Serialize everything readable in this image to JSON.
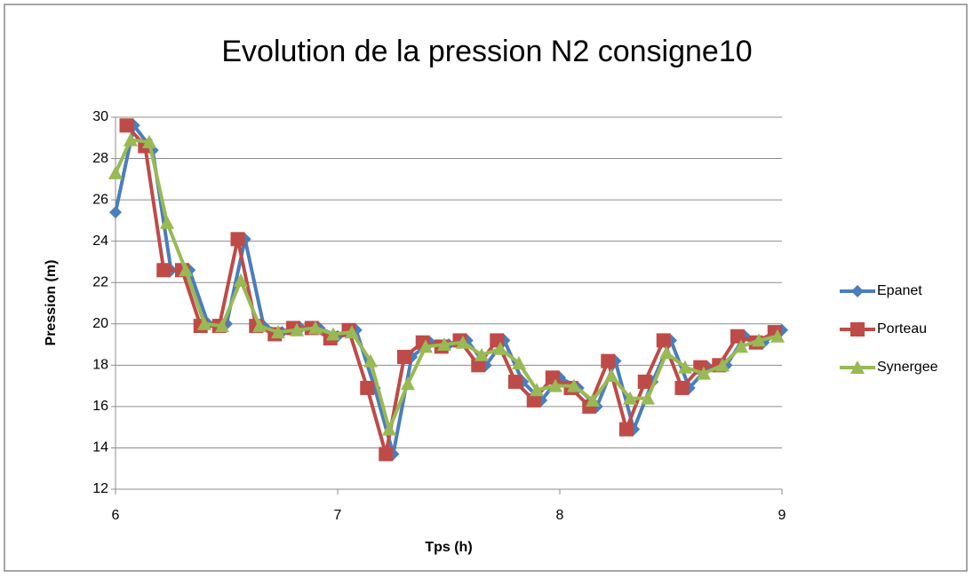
{
  "chart_data": {
    "type": "line",
    "title": "Evolution de la pression N2 consigne10",
    "xlabel": "Tps (h)",
    "ylabel": "Pression (m)",
    "xlim": [
      6,
      9
    ],
    "xticks": [
      6,
      7,
      8,
      9
    ],
    "ylim": [
      12,
      30
    ],
    "yticks": [
      12,
      14,
      16,
      18,
      20,
      22,
      24,
      26,
      28,
      30
    ],
    "grid": true,
    "legend": "right",
    "series": [
      {
        "name": "Epanet",
        "color": "#4a7ebb",
        "marker": "diamond",
        "x": [
          6,
          6.083,
          6.167,
          6.25,
          6.333,
          6.417,
          6.5,
          6.583,
          6.667,
          6.75,
          6.833,
          6.917,
          7,
          7.083,
          7.167,
          7.25,
          7.333,
          7.417,
          7.5,
          7.583,
          7.667,
          7.75,
          7.833,
          7.917,
          8,
          8.083,
          8.167,
          8.25,
          8.333,
          8.417,
          8.5,
          8.583,
          8.667,
          8.75,
          8.833,
          8.917,
          9
        ],
        "values": [
          25.4,
          29.6,
          28.4,
          22.6,
          22.6,
          20.0,
          20.0,
          24.1,
          19.9,
          19.6,
          19.8,
          19.8,
          19.4,
          19.7,
          16.9,
          13.7,
          18.4,
          19.1,
          19.0,
          19.2,
          18.0,
          19.2,
          17.2,
          16.3,
          17.4,
          16.9,
          16.0,
          18.2,
          14.9,
          17.2,
          19.2,
          16.9,
          17.9,
          18.0,
          19.4,
          19.1,
          19.7
        ]
      },
      {
        "name": "Porteau",
        "color": "#be4b48",
        "marker": "square",
        "x": [
          6.05,
          6.133,
          6.217,
          6.3,
          6.383,
          6.467,
          6.55,
          6.633,
          6.717,
          6.8,
          6.883,
          6.967,
          7.05,
          7.133,
          7.217,
          7.3,
          7.383,
          7.467,
          7.55,
          7.633,
          7.717,
          7.8,
          7.883,
          7.967,
          8.05,
          8.133,
          8.217,
          8.3,
          8.383,
          8.467,
          8.55,
          8.633,
          8.717,
          8.8,
          8.883,
          8.967
        ],
        "values": [
          29.6,
          28.6,
          22.6,
          22.6,
          19.9,
          19.9,
          24.1,
          19.9,
          19.5,
          19.8,
          19.8,
          19.3,
          19.7,
          16.9,
          13.7,
          18.4,
          19.1,
          18.9,
          19.2,
          18.0,
          19.2,
          17.2,
          16.3,
          17.4,
          16.9,
          16.0,
          18.2,
          14.9,
          17.2,
          19.2,
          16.9,
          17.9,
          18.0,
          19.4,
          19.1,
          19.6
        ]
      },
      {
        "name": "Synergee",
        "color": "#98b954",
        "marker": "triangle",
        "x": [
          6,
          6.068,
          6.152,
          6.232,
          6.316,
          6.4,
          6.48,
          6.564,
          6.648,
          6.732,
          6.816,
          6.9,
          6.98,
          7.064,
          7.148,
          7.232,
          7.316,
          7.396,
          7.48,
          7.564,
          7.648,
          7.732,
          7.816,
          7.896,
          7.98,
          8.064,
          8.148,
          8.232,
          8.316,
          8.396,
          8.48,
          8.564,
          8.648,
          8.732,
          8.816,
          8.896,
          8.98
        ],
        "values": [
          27.3,
          28.9,
          28.8,
          24.9,
          22.6,
          20.0,
          19.9,
          22.1,
          19.9,
          19.6,
          19.7,
          19.8,
          19.5,
          19.6,
          18.2,
          14.9,
          17.1,
          18.9,
          19.0,
          19.1,
          18.5,
          18.8,
          18.1,
          16.8,
          17.0,
          17.0,
          16.3,
          17.5,
          16.4,
          16.4,
          18.6,
          17.9,
          17.6,
          18.0,
          18.9,
          19.2,
          19.4
        ]
      }
    ]
  }
}
